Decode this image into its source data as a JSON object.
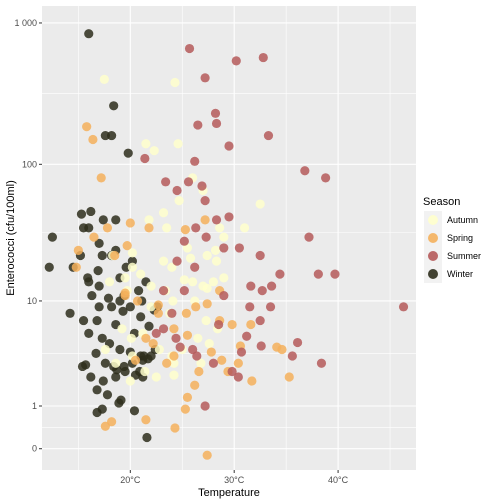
{
  "chart_data": {
    "type": "scatter",
    "xlabel": "Temperature",
    "ylabel": "Enterococci (cfu/100ml)",
    "x_unit": "°C",
    "y_scale": "log10(y+1)",
    "xlim": [
      11.5,
      47.5
    ],
    "ylim": [
      -0.15,
      3.12
    ],
    "x_ticks": [
      20,
      30,
      40
    ],
    "x_tick_labels": [
      "20°C",
      "30°C",
      "40°C"
    ],
    "y_ticks": [
      0,
      1,
      10,
      100,
      1000
    ],
    "y_tick_labels": [
      "0",
      "1",
      "10",
      "100",
      "1 000"
    ],
    "grid": true,
    "legend": {
      "title": "Season",
      "position": "right",
      "entries": [
        "Autumn",
        "Spring",
        "Summer",
        "Winter"
      ]
    },
    "colors": {
      "Autumn": "#FFFFCC",
      "Spring": "#F4B05C",
      "Summer": "#B55A5A",
      "Winter": "#2E2E1C"
    },
    "panel_background": "#EBEBEB",
    "series": [
      {
        "name": "Winter",
        "points": [
          [
            16,
            840
          ],
          [
            17.6,
            160
          ],
          [
            18.2,
            160
          ],
          [
            18.4,
            260
          ],
          [
            19.8,
            120
          ],
          [
            15.3,
            44
          ],
          [
            16.2,
            46
          ],
          [
            17.4,
            40
          ],
          [
            16,
            35
          ],
          [
            17,
            27
          ],
          [
            18.6,
            40
          ],
          [
            15.5,
            35
          ],
          [
            17.3,
            22
          ],
          [
            18.6,
            24
          ],
          [
            18.2,
            22
          ],
          [
            15.2,
            22
          ],
          [
            19,
            15
          ],
          [
            12.5,
            30
          ],
          [
            16,
            14
          ],
          [
            17,
            13
          ],
          [
            12.2,
            18
          ],
          [
            14.5,
            18
          ],
          [
            16.3,
            11
          ],
          [
            17,
            9
          ],
          [
            18.2,
            9
          ],
          [
            19,
            10
          ],
          [
            20,
            9
          ],
          [
            20.8,
            12
          ],
          [
            21.5,
            14
          ],
          [
            19.6,
            18
          ],
          [
            21,
            7.5
          ],
          [
            22.6,
            9
          ],
          [
            15.5,
            7
          ],
          [
            16.8,
            7
          ],
          [
            14.2,
            8
          ],
          [
            18.6,
            6.5
          ],
          [
            20.4,
            5.5
          ],
          [
            16,
            5.5
          ],
          [
            17.3,
            5
          ],
          [
            18,
            4.5
          ],
          [
            19,
            4
          ],
          [
            20,
            3.8
          ],
          [
            21,
            3.5
          ],
          [
            22,
            3.5
          ],
          [
            16.7,
            3.7
          ],
          [
            17.6,
            3
          ],
          [
            18.4,
            2.8
          ],
          [
            19.5,
            2.5
          ],
          [
            20.5,
            2.3
          ],
          [
            21.2,
            3.2
          ],
          [
            15.4,
            2.8
          ],
          [
            16.2,
            2.2
          ],
          [
            17.4,
            2.0
          ],
          [
            18.6,
            2.2
          ],
          [
            19.4,
            2.8
          ],
          [
            20.2,
            3.0
          ],
          [
            21.2,
            2.2
          ],
          [
            15.7,
            2.9
          ],
          [
            16.8,
            1.6
          ],
          [
            17.8,
            1.4
          ],
          [
            18.9,
            1.1
          ],
          [
            16.8,
            0.8
          ],
          [
            17.3,
            0.9
          ],
          [
            20.4,
            0.85
          ],
          [
            19.1,
            1.2
          ],
          [
            22.4,
            4
          ],
          [
            22.3,
            8.5
          ],
          [
            21.7,
            3.3
          ],
          [
            15.9,
            15
          ],
          [
            16.9,
            17
          ],
          [
            19.3,
            8.3
          ],
          [
            18.7,
            2.6
          ],
          [
            20.9,
            2.5
          ],
          [
            19.4,
            11
          ],
          [
            17.9,
            10.5
          ],
          [
            21.1,
            10
          ],
          [
            20.2,
            20
          ],
          [
            21.3,
            3.5
          ],
          [
            21.6,
            0.2
          ],
          [
            21.8,
            6.3
          ]
        ]
      },
      {
        "name": "Autumn",
        "points": [
          [
            17.5,
            400
          ],
          [
            24.3,
            380
          ],
          [
            21.5,
            140
          ],
          [
            22.3,
            125
          ],
          [
            24.6,
            140
          ],
          [
            24.7,
            55
          ],
          [
            26,
            80
          ],
          [
            27,
            65
          ],
          [
            21.8,
            40
          ],
          [
            23.2,
            45
          ],
          [
            25.5,
            25
          ],
          [
            27.4,
            22
          ],
          [
            28.6,
            35
          ],
          [
            28.2,
            24
          ],
          [
            29,
            30
          ],
          [
            31,
            35
          ],
          [
            32.5,
            52
          ],
          [
            18,
            14
          ],
          [
            19.5,
            15
          ],
          [
            20.2,
            18
          ],
          [
            21,
            16
          ],
          [
            22,
            13
          ],
          [
            23.4,
            12
          ],
          [
            24,
            18
          ],
          [
            26,
            14
          ],
          [
            27,
            13
          ],
          [
            28,
            14
          ],
          [
            29,
            15
          ],
          [
            22,
            9
          ],
          [
            23.8,
            8
          ],
          [
            26.2,
            10
          ],
          [
            27.3,
            7
          ],
          [
            19.2,
            6
          ],
          [
            20.1,
            5
          ],
          [
            21.2,
            5.5
          ],
          [
            22.8,
            4
          ],
          [
            24,
            3.5
          ],
          [
            25,
            4
          ],
          [
            26.5,
            5
          ],
          [
            27.6,
            4.5
          ],
          [
            28.4,
            6
          ],
          [
            17.6,
            4
          ],
          [
            18.6,
            3
          ],
          [
            20.2,
            3.5
          ],
          [
            21.4,
            2.5
          ],
          [
            22.5,
            2.2
          ],
          [
            24.2,
            3
          ],
          [
            26.8,
            3
          ],
          [
            20,
            2
          ],
          [
            24.2,
            2.3
          ],
          [
            27.4,
            12.5
          ],
          [
            25.2,
            14.5
          ],
          [
            24.1,
            10
          ],
          [
            23.5,
            35
          ],
          [
            18.3,
            22
          ],
          [
            20.2,
            23
          ],
          [
            23.2,
            20
          ],
          [
            25.8,
            21
          ],
          [
            28.3,
            20
          ],
          [
            19.7,
            12
          ]
        ]
      },
      {
        "name": "Spring",
        "points": [
          [
            15.8,
            185
          ],
          [
            16.4,
            150
          ],
          [
            17.2,
            80
          ],
          [
            20,
            38
          ],
          [
            21.8,
            35
          ],
          [
            17.8,
            35
          ],
          [
            16.5,
            30
          ],
          [
            18.5,
            22
          ],
          [
            14.8,
            18
          ],
          [
            15,
            24
          ],
          [
            19.7,
            26
          ],
          [
            25.3,
            34
          ],
          [
            27.2,
            40
          ],
          [
            19.5,
            11
          ],
          [
            20.7,
            10
          ],
          [
            22.7,
            8
          ],
          [
            24.2,
            6
          ],
          [
            25.4,
            8
          ],
          [
            26.3,
            9
          ],
          [
            27.4,
            9.5
          ],
          [
            28.6,
            12
          ],
          [
            29.8,
            6.5
          ],
          [
            30.6,
            4.3
          ],
          [
            31.6,
            6.5
          ],
          [
            28.6,
            7
          ],
          [
            25.5,
            5.3
          ],
          [
            24.2,
            3.5
          ],
          [
            23.5,
            3
          ],
          [
            20.5,
            3.2
          ],
          [
            21.5,
            5
          ],
          [
            22.2,
            4.5
          ],
          [
            27.8,
            3.8
          ],
          [
            28.8,
            3.2
          ],
          [
            29.4,
            2.5
          ],
          [
            30.4,
            3
          ],
          [
            31.7,
            2
          ],
          [
            34.1,
            4.2
          ],
          [
            34.6,
            4
          ],
          [
            35.3,
            2.2
          ],
          [
            26.6,
            2.5
          ],
          [
            26.2,
            1.8
          ],
          [
            25.5,
            1.3
          ],
          [
            25.3,
            0.9
          ],
          [
            24.3,
            0.4
          ],
          [
            21.5,
            0.6
          ],
          [
            18.2,
            0.55
          ],
          [
            17.6,
            0.44
          ],
          [
            27.4,
            -0.1
          ],
          [
            19.5,
            11.5
          ],
          [
            22.7,
            9.3
          ]
        ]
      },
      {
        "name": "Summer",
        "points": [
          [
            25.7,
            660
          ],
          [
            27.2,
            410
          ],
          [
            30.2,
            540
          ],
          [
            32.8,
            570
          ],
          [
            26.5,
            190
          ],
          [
            28.2,
            230
          ],
          [
            21.4,
            110
          ],
          [
            23.4,
            75
          ],
          [
            24.5,
            65
          ],
          [
            25.6,
            75
          ],
          [
            26.2,
            105
          ],
          [
            26.9,
            70
          ],
          [
            28.3,
            195
          ],
          [
            29.5,
            135
          ],
          [
            33.3,
            160
          ],
          [
            27.2,
            55
          ],
          [
            28.3,
            40
          ],
          [
            26.3,
            35
          ],
          [
            27.3,
            30
          ],
          [
            29.5,
            42
          ],
          [
            25.2,
            28
          ],
          [
            24.5,
            20
          ],
          [
            26.2,
            18
          ],
          [
            29,
            25
          ],
          [
            30.5,
            25
          ],
          [
            32.5,
            22
          ],
          [
            36.8,
            90
          ],
          [
            38.8,
            80
          ],
          [
            37.2,
            30
          ],
          [
            38.1,
            16
          ],
          [
            39.7,
            16
          ],
          [
            46.3,
            9
          ],
          [
            31.6,
            13
          ],
          [
            32.7,
            12
          ],
          [
            33.6,
            13
          ],
          [
            34.4,
            16
          ],
          [
            31.5,
            9
          ],
          [
            32.5,
            7
          ],
          [
            33.5,
            9
          ],
          [
            29,
            11
          ],
          [
            24,
            8
          ],
          [
            23.2,
            6
          ],
          [
            22.5,
            5.5
          ],
          [
            24.4,
            5
          ],
          [
            24.8,
            4.2
          ],
          [
            26,
            4
          ],
          [
            26.4,
            3.5
          ],
          [
            28,
            3
          ],
          [
            29.8,
            2.5
          ],
          [
            30.4,
            2.2
          ],
          [
            32.6,
            4.3
          ],
          [
            35.6,
            3.5
          ],
          [
            36.1,
            4.6
          ],
          [
            38.4,
            3
          ],
          [
            28.5,
            6.5
          ],
          [
            27.2,
            1.0
          ],
          [
            30.7,
            3.8
          ],
          [
            31.2,
            5.2
          ],
          [
            25.2,
            12
          ],
          [
            23.2,
            12
          ]
        ]
      }
    ]
  }
}
